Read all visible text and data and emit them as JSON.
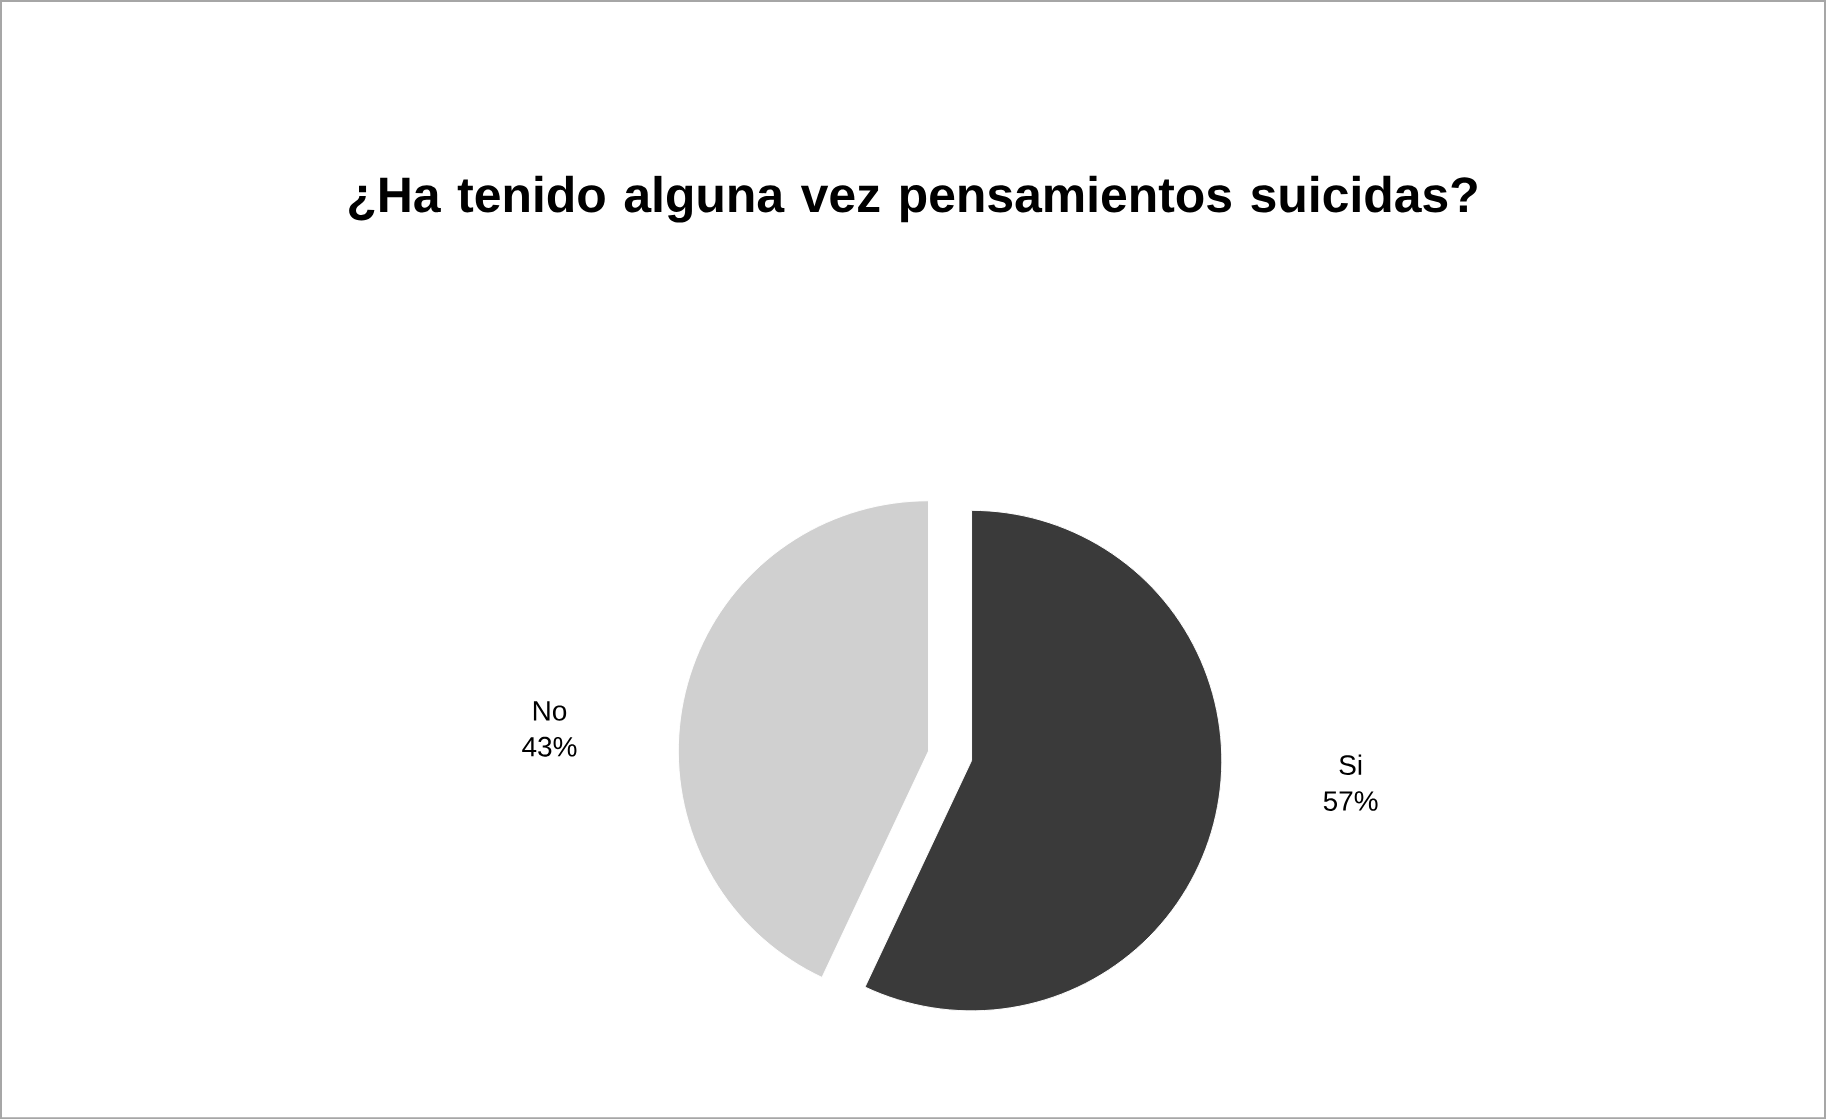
{
  "chart_data": {
    "type": "pie",
    "title": "¿Ha tenido alguna vez pensamientos suicidas?",
    "categories": [
      "Si",
      "No"
    ],
    "values": [
      57,
      43
    ],
    "value_labels": [
      "57%",
      "43%"
    ],
    "colors": [
      "#3a3a3a",
      "#d0d0d0"
    ]
  }
}
